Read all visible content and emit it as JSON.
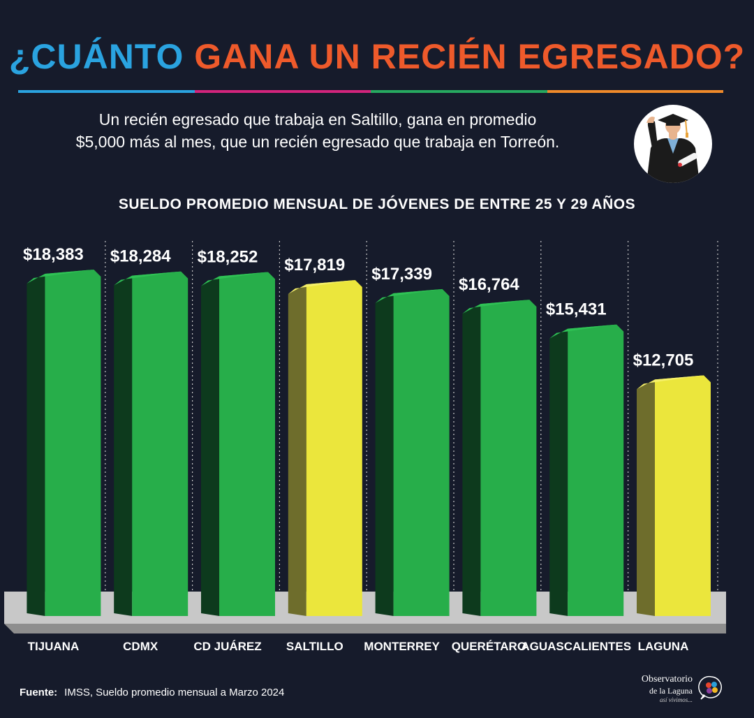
{
  "header": {
    "title_part1": "¿CUÁNTO",
    "title_part2": "GANA UN",
    "title_part3": "RECIÉN EGRESADO?"
  },
  "intro": {
    "line1": "Un recién egresado que trabaja en Saltillo, gana en promedio",
    "line2": "$5,000 más al mes, que un recién egresado que trabaja en Torreón."
  },
  "colors": {
    "title_blue": "#2aa3e0",
    "title_orange": "#ee5a2b",
    "rule": [
      "#2aa3e0",
      "#d2247c",
      "#27a960",
      "#f08a2a"
    ],
    "bar_green": "#27ae4a",
    "bar_yellow": "#ebe63c",
    "background": "#161b2b"
  },
  "chart_data": {
    "type": "bar",
    "title": "SUELDO PROMEDIO MENSUAL DE JÓVENES DE ENTRE 25 Y 29 AÑOS",
    "categories": [
      "TIJUANA",
      "CDMX",
      "CD JUÁREZ",
      "SALTILLO",
      "MONTERREY",
      "QUERÉTARO",
      "AGUASCALIENTES",
      "LAGUNA"
    ],
    "values": [
      18383,
      18284,
      18252,
      17819,
      17339,
      16764,
      15431,
      12705
    ],
    "data_labels": [
      "$18,383",
      "$18,284",
      "$18,252",
      "$17,819",
      "$17,339",
      "$16,764",
      "$15,431",
      "$12,705"
    ],
    "highlighted": [
      "SALTILLO",
      "LAGUNA"
    ],
    "xlabel": "",
    "ylabel": "",
    "grid": false
  },
  "footer": {
    "source_label": "Fuente:",
    "source_text": "IMSS, Sueldo promedio mensual a Marzo 2024",
    "logo_line1": "Observatorio",
    "logo_line2": "de la Laguna",
    "logo_line3": "así vivimos..."
  }
}
